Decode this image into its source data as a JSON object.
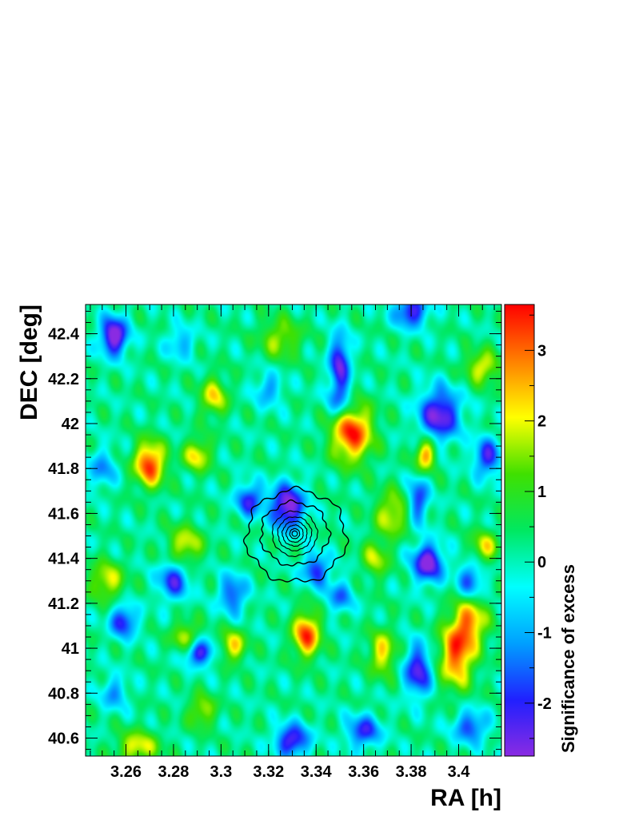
{
  "chart_data": {
    "type": "heatmap",
    "title": "",
    "xlabel": "RA [h]",
    "ylabel": "DEC [deg]",
    "colorbar_label": "Significance of excess",
    "xlim": [
      3.243,
      3.418
    ],
    "ylim": [
      40.52,
      42.53
    ],
    "zlim": [
      -2.75,
      3.65
    ],
    "x_ticks": [
      3.26,
      3.28,
      3.3,
      3.32,
      3.34,
      3.36,
      3.38,
      3.4
    ],
    "x_tick_labels": [
      "3.26",
      "3.28",
      "3.3",
      "3.32",
      "3.34",
      "3.36",
      "3.38",
      "3.4"
    ],
    "y_ticks": [
      40.6,
      40.8,
      41.0,
      41.2,
      41.4,
      41.6,
      41.8,
      42.0,
      42.2,
      42.4
    ],
    "y_tick_labels": [
      "40.6",
      "40.8",
      "41",
      "41.2",
      "41.4",
      "41.6",
      "41.8",
      "42",
      "42.2",
      "42.4"
    ],
    "colorbar_ticks": [
      -2,
      -1,
      0,
      1,
      2,
      3
    ],
    "colorbar_tick_labels": [
      "-2",
      "-1",
      "0",
      "1",
      "2",
      "3"
    ],
    "colormap": [
      "#8a2be2",
      "#2020ff",
      "#00a0ff",
      "#00ffff",
      "#00e860",
      "#40e000",
      "#ffff00",
      "#ff8000",
      "#ff0000"
    ],
    "base_level": 0.2,
    "blobs": [
      {
        "ra": 3.27,
        "dec": 41.82,
        "peak": 3.2,
        "sigma_ra": 0.0045,
        "sigma_dec": 0.07
      },
      {
        "ra": 3.29,
        "dec": 41.86,
        "peak": 2.0,
        "sigma_ra": 0.004,
        "sigma_dec": 0.05
      },
      {
        "ra": 3.355,
        "dec": 41.96,
        "peak": 3.3,
        "sigma_ra": 0.006,
        "sigma_dec": 0.09
      },
      {
        "ra": 3.386,
        "dec": 41.86,
        "peak": 2.6,
        "sigma_ra": 0.003,
        "sigma_dec": 0.05
      },
      {
        "ra": 3.336,
        "dec": 41.06,
        "peak": 3.1,
        "sigma_ra": 0.004,
        "sigma_dec": 0.07
      },
      {
        "ra": 3.399,
        "dec": 40.97,
        "peak": 2.9,
        "sigma_ra": 0.005,
        "sigma_dec": 0.1
      },
      {
        "ra": 3.405,
        "dec": 41.12,
        "peak": 2.3,
        "sigma_ra": 0.005,
        "sigma_dec": 0.08
      },
      {
        "ra": 3.368,
        "dec": 40.98,
        "peak": 2.0,
        "sigma_ra": 0.004,
        "sigma_dec": 0.07
      },
      {
        "ra": 3.252,
        "dec": 41.3,
        "peak": 1.8,
        "sigma_ra": 0.005,
        "sigma_dec": 0.06
      },
      {
        "ra": 3.285,
        "dec": 41.46,
        "peak": 1.8,
        "sigma_ra": 0.005,
        "sigma_dec": 0.06
      },
      {
        "ra": 3.305,
        "dec": 41.01,
        "peak": 2.0,
        "sigma_ra": 0.004,
        "sigma_dec": 0.05
      },
      {
        "ra": 3.285,
        "dec": 41.05,
        "peak": 1.7,
        "sigma_ra": 0.004,
        "sigma_dec": 0.05
      },
      {
        "ra": 3.297,
        "dec": 42.12,
        "peak": 1.9,
        "sigma_ra": 0.004,
        "sigma_dec": 0.06
      },
      {
        "ra": 3.372,
        "dec": 41.6,
        "peak": 1.8,
        "sigma_ra": 0.005,
        "sigma_dec": 0.07
      },
      {
        "ra": 3.411,
        "dec": 41.45,
        "peak": 1.8,
        "sigma_ra": 0.004,
        "sigma_dec": 0.05
      },
      {
        "ra": 3.41,
        "dec": 42.25,
        "peak": 1.9,
        "sigma_ra": 0.005,
        "sigma_dec": 0.05
      },
      {
        "ra": 3.365,
        "dec": 41.4,
        "peak": 1.5,
        "sigma_ra": 0.004,
        "sigma_dec": 0.06
      },
      {
        "ra": 3.325,
        "dec": 42.38,
        "peak": 1.5,
        "sigma_ra": 0.006,
        "sigma_dec": 0.06
      },
      {
        "ra": 3.265,
        "dec": 40.56,
        "peak": 1.9,
        "sigma_ra": 0.006,
        "sigma_dec": 0.05
      },
      {
        "ra": 3.292,
        "dec": 40.72,
        "peak": 1.6,
        "sigma_ra": 0.004,
        "sigma_dec": 0.05
      },
      {
        "ra": 3.255,
        "dec": 42.39,
        "peak": -3.3,
        "sigma_ra": 0.004,
        "sigma_dec": 0.06
      },
      {
        "ra": 3.328,
        "dec": 41.63,
        "peak": -3.2,
        "sigma_ra": 0.005,
        "sigma_dec": 0.07
      },
      {
        "ra": 3.312,
        "dec": 41.66,
        "peak": -2.3,
        "sigma_ra": 0.004,
        "sigma_dec": 0.05
      },
      {
        "ra": 3.387,
        "dec": 41.38,
        "peak": -3.1,
        "sigma_ra": 0.0045,
        "sigma_dec": 0.06
      },
      {
        "ra": 3.383,
        "dec": 41.66,
        "peak": -2.2,
        "sigma_ra": 0.003,
        "sigma_dec": 0.07
      },
      {
        "ra": 3.392,
        "dec": 42.04,
        "peak": -2.9,
        "sigma_ra": 0.006,
        "sigma_dec": 0.08
      },
      {
        "ra": 3.412,
        "dec": 41.85,
        "peak": -2.3,
        "sigma_ra": 0.004,
        "sigma_dec": 0.06
      },
      {
        "ra": 3.35,
        "dec": 42.27,
        "peak": -2.6,
        "sigma_ra": 0.003,
        "sigma_dec": 0.09
      },
      {
        "ra": 3.38,
        "dec": 42.5,
        "peak": -2.5,
        "sigma_ra": 0.005,
        "sigma_dec": 0.05
      },
      {
        "ra": 3.291,
        "dec": 40.98,
        "peak": -2.6,
        "sigma_ra": 0.0045,
        "sigma_dec": 0.04
      },
      {
        "ra": 3.259,
        "dec": 41.12,
        "peak": -2.3,
        "sigma_ra": 0.004,
        "sigma_dec": 0.05
      },
      {
        "ra": 3.34,
        "dec": 41.35,
        "peak": -2.2,
        "sigma_ra": 0.004,
        "sigma_dec": 0.05
      },
      {
        "ra": 3.33,
        "dec": 40.59,
        "peak": -2.7,
        "sigma_ra": 0.005,
        "sigma_dec": 0.05
      },
      {
        "ra": 3.383,
        "dec": 40.9,
        "peak": -2.6,
        "sigma_ra": 0.004,
        "sigma_dec": 0.08
      },
      {
        "ra": 3.36,
        "dec": 40.63,
        "peak": -2.2,
        "sigma_ra": 0.005,
        "sigma_dec": 0.05
      },
      {
        "ra": 3.405,
        "dec": 40.65,
        "peak": -2.0,
        "sigma_ra": 0.005,
        "sigma_dec": 0.05
      },
      {
        "ra": 3.28,
        "dec": 41.3,
        "peak": -2.2,
        "sigma_ra": 0.0045,
        "sigma_dec": 0.06
      },
      {
        "ra": 3.305,
        "dec": 41.24,
        "peak": -2.0,
        "sigma_ra": 0.004,
        "sigma_dec": 0.06
      },
      {
        "ra": 3.35,
        "dec": 42.1,
        "peak": -1.6,
        "sigma_ra": 0.004,
        "sigma_dec": 0.06
      },
      {
        "ra": 3.405,
        "dec": 41.3,
        "peak": -1.9,
        "sigma_ra": 0.004,
        "sigma_dec": 0.06
      },
      {
        "ra": 3.283,
        "dec": 42.36,
        "peak": -1.3,
        "sigma_ra": 0.004,
        "sigma_dec": 0.05
      },
      {
        "ra": 3.32,
        "dec": 42.15,
        "peak": -1.4,
        "sigma_ra": 0.004,
        "sigma_dec": 0.05
      },
      {
        "ra": 3.25,
        "dec": 41.8,
        "peak": -1.4,
        "sigma_ra": 0.004,
        "sigma_dec": 0.06
      },
      {
        "ra": 3.35,
        "dec": 41.23,
        "peak": -1.6,
        "sigma_ra": 0.004,
        "sigma_dec": 0.05
      },
      {
        "ra": 3.255,
        "dec": 40.8,
        "peak": -1.4,
        "sigma_ra": 0.004,
        "sigma_dec": 0.05
      }
    ],
    "contours": {
      "center": [
        3.331,
        41.51
      ],
      "color": "#000000",
      "radii_dec": [
        0.205,
        0.14,
        0.1,
        0.075,
        0.055,
        0.038,
        0.022,
        0.012
      ]
    }
  }
}
